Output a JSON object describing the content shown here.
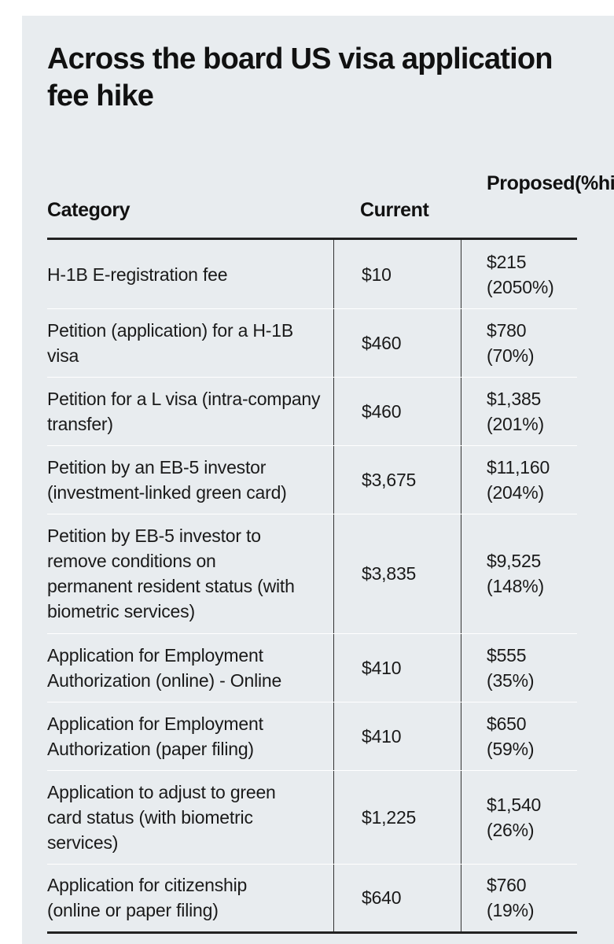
{
  "chart_data": {
    "type": "table",
    "title": "Across the board US visa application fee hike",
    "columns": {
      "category": "Category",
      "current": "Current",
      "proposed": "Proposed (%hike)"
    },
    "rows": [
      {
        "category": "H-1B E-registration fee",
        "current": "$10",
        "proposed": "$215 (2050%)"
      },
      {
        "category": "Petition (application) for a H-1B visa",
        "current": "$460",
        "proposed": "$780 (70%)"
      },
      {
        "category": "Petition for a L visa (intra-company transfer)",
        "current": "$460",
        "proposed": "$1,385 (201%)"
      },
      {
        "category": "Petition by an EB-5 investor (investment-linked green card)",
        "current": "$3,675",
        "proposed": "$11,160 (204%)"
      },
      {
        "category": "Petition by EB-5 investor to remove conditions on permanent resident status (with biometric services)",
        "current": "$3,835",
        "proposed": "$9,525 (148%)"
      },
      {
        "category": "Application for Employment Authorization (online) - Online",
        "current": "$410",
        "proposed": "$555 (35%)"
      },
      {
        "category": "Application for Employment Authorization (paper filing)",
        "current": "$410",
        "proposed": "$650 (59%)"
      },
      {
        "category": "Application to adjust to green card status (with biometric services)",
        "current": "$1,225",
        "proposed": "$1,540 (26%)"
      },
      {
        "category": "Application for citizenship (online or paper filing)",
        "current": "$640",
        "proposed": "$760 (19%)"
      }
    ]
  }
}
